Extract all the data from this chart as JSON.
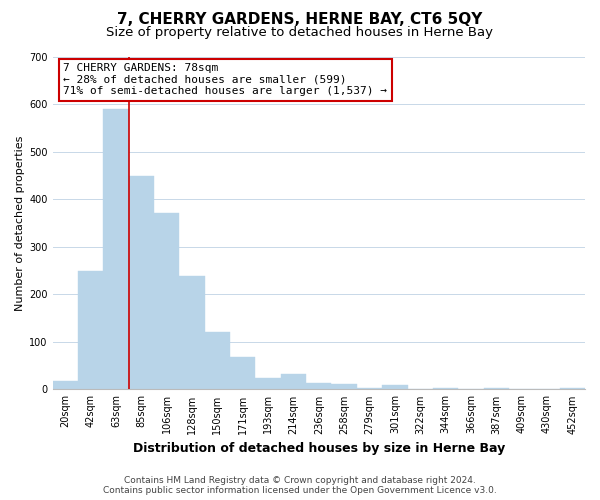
{
  "title": "7, CHERRY GARDENS, HERNE BAY, CT6 5QY",
  "subtitle": "Size of property relative to detached houses in Herne Bay",
  "xlabel": "Distribution of detached houses by size in Herne Bay",
  "ylabel": "Number of detached properties",
  "bar_labels": [
    "20sqm",
    "42sqm",
    "63sqm",
    "85sqm",
    "106sqm",
    "128sqm",
    "150sqm",
    "171sqm",
    "193sqm",
    "214sqm",
    "236sqm",
    "258sqm",
    "279sqm",
    "301sqm",
    "322sqm",
    "344sqm",
    "366sqm",
    "387sqm",
    "409sqm",
    "430sqm",
    "452sqm"
  ],
  "bar_values": [
    18,
    248,
    590,
    448,
    372,
    238,
    120,
    68,
    25,
    32,
    13,
    12,
    2,
    10,
    0,
    2,
    0,
    2,
    0,
    0,
    2
  ],
  "bar_color": "#b8d4e8",
  "bar_edge_color": "#b8d4e8",
  "grid_color": "#c8d8e8",
  "vline_color": "#cc0000",
  "vline_x_index": 2.5,
  "ylim": [
    0,
    700
  ],
  "yticks": [
    0,
    100,
    200,
    300,
    400,
    500,
    600,
    700
  ],
  "annotation_title": "7 CHERRY GARDENS: 78sqm",
  "annotation_line1": "← 28% of detached houses are smaller (599)",
  "annotation_line2": "71% of semi-detached houses are larger (1,537) →",
  "annotation_box_color": "#ffffff",
  "annotation_box_edge": "#cc0000",
  "footer_line1": "Contains HM Land Registry data © Crown copyright and database right 2024.",
  "footer_line2": "Contains public sector information licensed under the Open Government Licence v3.0.",
  "bg_color": "#ffffff",
  "title_fontsize": 11,
  "subtitle_fontsize": 9.5,
  "xlabel_fontsize": 9,
  "ylabel_fontsize": 8,
  "tick_fontsize": 7,
  "annotation_fontsize": 8,
  "footer_fontsize": 6.5
}
